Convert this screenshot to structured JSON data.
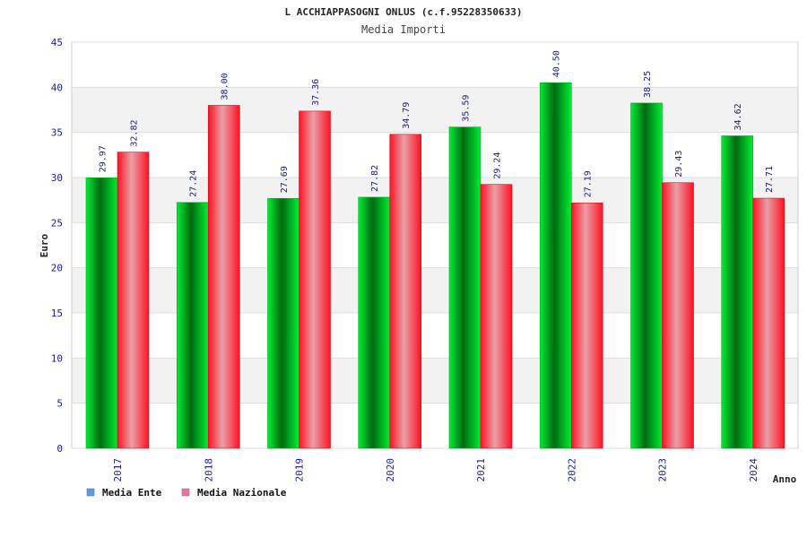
{
  "chart_data": {
    "type": "bar",
    "title": "L ACCHIAPPASOGNI ONLUS (c.f.95228350633)",
    "subtitle": "Media Importi",
    "xlabel": "Anno",
    "ylabel": "Euro",
    "ylim": [
      0,
      45
    ],
    "yticks": [
      0,
      5,
      10,
      15,
      20,
      25,
      30,
      35,
      40,
      45
    ],
    "grid": true,
    "legend_position": "bottom-left",
    "categories": [
      "2017",
      "2018",
      "2019",
      "2020",
      "2021",
      "2022",
      "2023",
      "2024"
    ],
    "series": [
      {
        "name": "Media Ente",
        "values": [
          29.97,
          27.24,
          27.69,
          27.82,
          35.59,
          40.5,
          38.25,
          34.62
        ],
        "color": "#00cc22",
        "legend_color": "#5b9be6"
      },
      {
        "name": "Media Nazionale",
        "values": [
          32.82,
          38.0,
          37.36,
          34.79,
          29.24,
          27.19,
          29.43,
          27.71
        ],
        "color": "#ee2233",
        "legend_color": "#e07aa8"
      }
    ],
    "data_labels": [
      [
        "29.97",
        "27.24",
        "27.69",
        "27.82",
        "35.59",
        "40.50",
        "38.25",
        "34.62"
      ],
      [
        "32.82",
        "38.00",
        "37.36",
        "34.79",
        "29.24",
        "27.19",
        "29.43",
        "27.71"
      ]
    ]
  }
}
